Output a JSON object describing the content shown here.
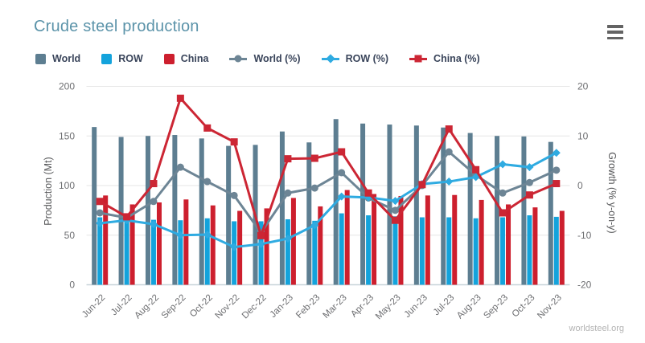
{
  "page": {
    "title": "Crude steel production",
    "credit": "worldsteel.org"
  },
  "colors": {
    "world_bar": "#5d7e91",
    "row_bar": "#14a3dc",
    "china_bar": "#cd1f2e",
    "world_line": "#6d8595",
    "row_line": "#2fabe1",
    "china_line": "#cc2634",
    "title_text": "#5b93a9",
    "legend_text": "#39445a",
    "tick_text": "#6d6e71",
    "axis_title_text": "#58595b",
    "gridline": "#e6e6e6",
    "axis_line": "#c8d4d9"
  },
  "legend": {
    "items": [
      {
        "id": "world",
        "label": "World",
        "marker": "swatch",
        "color": "#5d7e91"
      },
      {
        "id": "row",
        "label": "ROW",
        "marker": "swatch",
        "color": "#14a3dc"
      },
      {
        "id": "china",
        "label": "China",
        "marker": "swatch",
        "color": "#cd1f2e"
      },
      {
        "id": "world-pct",
        "label": "World (%)",
        "marker": "line-circle",
        "color": "#6d8595"
      },
      {
        "id": "row-pct",
        "label": "ROW (%)",
        "marker": "line-diamond",
        "color": "#2fabe1"
      },
      {
        "id": "china-pct",
        "label": "China (%)",
        "marker": "line-square",
        "color": "#cc2634"
      }
    ]
  },
  "axes": {
    "left": {
      "title": "Production (Mt)",
      "ticks": [
        0,
        50,
        100,
        150,
        200
      ],
      "range": [
        0,
        200
      ]
    },
    "right": {
      "title": "Growth (% y-on-y)",
      "ticks": [
        20,
        10,
        0,
        -10,
        -20
      ],
      "range": [
        -20,
        20
      ]
    }
  },
  "chart_data": {
    "type": "bar",
    "subtype": "combo-column-line-dual-axis",
    "title": "Crude steel production",
    "xlabel": "",
    "ylabel_left": "Production (Mt)",
    "ylabel_right": "Growth (% y-on-y)",
    "ylim_left": [
      0,
      200
    ],
    "ylim_right": [
      -20,
      20
    ],
    "yticks_left": [
      0,
      50,
      100,
      150,
      200
    ],
    "yticks_right": [
      20,
      10,
      0,
      -10,
      -20
    ],
    "grid": true,
    "legend_position": "top-left",
    "categories": [
      "Jun-22",
      "Jul-22",
      "Aug-22",
      "Sep-22",
      "Oct-22",
      "Nov-22",
      "Dec-22",
      "Jan-23",
      "Feb-23",
      "Mar-23",
      "Apr-23",
      "May-23",
      "Jun-23",
      "Jul-23",
      "Aug-23",
      "Sep-23",
      "Oct-23",
      "Nov-23"
    ],
    "series": [
      {
        "name": "World",
        "type": "bar",
        "axis": "left",
        "color": "#5d7e91",
        "values": [
          159,
          149,
          150,
          151,
          147.5,
          140,
          141,
          154.5,
          143.5,
          167,
          162.5,
          161.5,
          160.5,
          158.5,
          153,
          150,
          149.5,
          144
        ]
      },
      {
        "name": "ROW",
        "type": "bar",
        "axis": "left",
        "color": "#14a3dc",
        "values": [
          68,
          66,
          65.5,
          65,
          67,
          64,
          64,
          66,
          64.5,
          72,
          70,
          69,
          68,
          68,
          67,
          68,
          70,
          68.5
        ]
      },
      {
        "name": "China",
        "type": "bar",
        "axis": "left",
        "color": "#cd1f2e",
        "values": [
          90,
          81,
          83,
          86,
          80,
          74.5,
          77,
          87.5,
          79,
          95.5,
          91.5,
          89.5,
          90,
          90.5,
          85.5,
          81,
          78,
          74.5
        ]
      },
      {
        "name": "World (%)",
        "type": "line",
        "marker": "circle",
        "axis": "right",
        "color": "#6d8595",
        "values": [
          -5.5,
          -6.5,
          -3.2,
          3.7,
          0.8,
          -2.0,
          -9.5,
          -1.5,
          -0.5,
          2.6,
          -2.5,
          -5.0,
          0.0,
          6.8,
          2.1,
          -1.5,
          0.6,
          3.1
        ]
      },
      {
        "name": "ROW (%)",
        "type": "line",
        "marker": "diamond",
        "axis": "right",
        "color": "#2fabe1",
        "values": [
          -7.6,
          -7.0,
          -7.8,
          -10.0,
          -9.9,
          -12.4,
          -11.8,
          -10.7,
          -8.0,
          -2.2,
          -2.4,
          -3.1,
          0.3,
          0.8,
          1.7,
          4.3,
          3.7,
          6.6
        ]
      },
      {
        "name": "China (%)",
        "type": "line",
        "marker": "square",
        "axis": "right",
        "color": "#cc2634",
        "values": [
          -3.2,
          -6.3,
          0.4,
          17.6,
          11.6,
          8.8,
          -10.1,
          5.4,
          5.5,
          6.8,
          -1.5,
          -7.0,
          0.2,
          11.4,
          3.2,
          -5.5,
          -1.9,
          0.4
        ]
      }
    ]
  }
}
